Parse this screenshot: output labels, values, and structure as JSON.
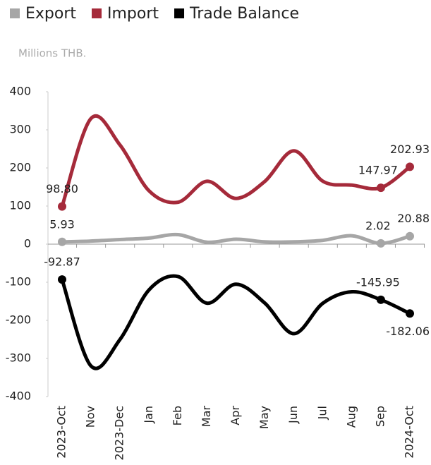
{
  "chart_data": {
    "type": "line",
    "subtitle": "Millions THB.",
    "categories": [
      "2023-Oct",
      "Nov",
      "2023-Dec",
      "Jan",
      "Feb",
      "Mar",
      "Apr",
      "May",
      "Jun",
      "Jul",
      "Aug",
      "Sep",
      "2024-Oct"
    ],
    "series": [
      {
        "name": "Export",
        "color": "#a6a6a6",
        "values": [
          5.93,
          8,
          12,
          16,
          25,
          5,
          13,
          6,
          6,
          10,
          22,
          2.02,
          20.88
        ],
        "value_labels": [
          "5.93",
          null,
          null,
          null,
          null,
          null,
          null,
          null,
          null,
          null,
          null,
          "2.02",
          "20.88"
        ]
      },
      {
        "name": "Import",
        "color": "#a52a3a",
        "values": [
          98.8,
          330,
          260,
          140,
          110,
          165,
          120,
          165,
          245,
          165,
          155,
          147.97,
          202.93
        ],
        "value_labels": [
          "98.80",
          null,
          null,
          null,
          null,
          null,
          null,
          null,
          null,
          null,
          null,
          "147.97",
          "202.93"
        ]
      },
      {
        "name": "Trade Balance",
        "color": "#000000",
        "values": [
          -92.87,
          -320,
          -250,
          -120,
          -85,
          -155,
          -105,
          -155,
          -235,
          -155,
          -125,
          -145.95,
          -182.06
        ],
        "value_labels": [
          "-92.87",
          null,
          null,
          null,
          null,
          null,
          null,
          null,
          null,
          null,
          null,
          "-145.95",
          "-182.06"
        ]
      }
    ],
    "ylim": [
      -400,
      400
    ],
    "yticks": [
      400,
      300,
      200,
      100,
      0,
      -100,
      -200,
      -300,
      -400
    ],
    "legend": "top-left"
  }
}
